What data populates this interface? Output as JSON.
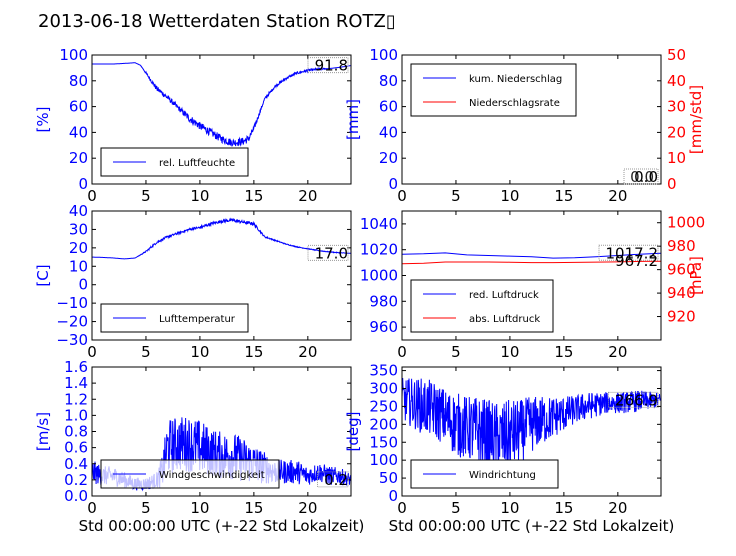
{
  "figure_title": "2013-06-18 Wetterdaten Station ROTZ▯",
  "colors": {
    "blue": "#0000ff",
    "red": "#ff0000",
    "axis": "#000000"
  },
  "chart_data": [
    {
      "id": "p1",
      "type": "line",
      "ylabel": "[%]",
      "ylim": [
        0,
        100
      ],
      "yticks": [
        "0",
        "20",
        "40",
        "60",
        "80",
        "100"
      ],
      "xlim": [
        0,
        24
      ],
      "xticks": [
        "0",
        "5",
        "10",
        "15",
        "20"
      ],
      "legend": "bottom-left",
      "last_value": "91.8",
      "series": [
        {
          "name": "rel. Luftfeuchte",
          "color": "#0000ff",
          "x": [
            0,
            1,
            2,
            3,
            4,
            4.5,
            5,
            6,
            7,
            8,
            9,
            10,
            11,
            12,
            13,
            14,
            14.5,
            15,
            16,
            17,
            18,
            19,
            20,
            21,
            22,
            23,
            24
          ],
          "y": [
            93,
            93,
            93,
            93.5,
            94,
            92,
            86,
            74,
            67,
            59,
            51,
            45,
            40,
            35,
            32,
            33,
            35,
            43,
            66,
            76,
            82,
            86,
            88,
            89,
            89.5,
            90.5,
            91.8
          ]
        }
      ],
      "noise": [
        0,
        0,
        0,
        0,
        0,
        0,
        1,
        2,
        2,
        2,
        3,
        3,
        3,
        3,
        3,
        3,
        3,
        2,
        1,
        1,
        1,
        1,
        1,
        1,
        0,
        0,
        0
      ]
    },
    {
      "id": "p2",
      "type": "line",
      "ylabel": "[mm]",
      "ylim": [
        0,
        100
      ],
      "yticks": [
        "0",
        "20",
        "40",
        "60",
        "80",
        "100"
      ],
      "ylabel2": "[mm/std]",
      "ylim2": [
        0,
        50
      ],
      "yticks2": [
        "0",
        "10",
        "20",
        "30",
        "40",
        "50"
      ],
      "xlim": [
        0,
        24
      ],
      "xticks": [
        "0",
        "5",
        "10",
        "15",
        "20"
      ],
      "legend": "top-left",
      "last_value": "0.0",
      "last_value2": "0.0",
      "series": [
        {
          "name": "kum. Niederschlag",
          "color": "#0000ff",
          "axis": "left",
          "x": [
            0,
            24
          ],
          "y": [
            0,
            0
          ]
        },
        {
          "name": "Niederschlagsrate",
          "color": "#ff0000",
          "axis": "right",
          "x": [
            0,
            24
          ],
          "y": [
            0,
            0
          ]
        }
      ]
    },
    {
      "id": "p3",
      "type": "line",
      "ylabel": "[C]",
      "ylim": [
        -30,
        40
      ],
      "yticks": [
        "−30",
        "−20",
        "−10",
        "0",
        "10",
        "20",
        "30",
        "40"
      ],
      "xlim": [
        0,
        24
      ],
      "xticks": [
        "0",
        "5",
        "10",
        "15",
        "20"
      ],
      "legend": "bottom-left",
      "last_value": "17.0",
      "series": [
        {
          "name": "Lufttemperatur",
          "color": "#0000ff",
          "x": [
            0,
            1,
            2,
            3,
            4,
            5,
            6,
            7,
            8,
            9,
            10,
            11,
            12,
            13,
            14,
            15,
            16,
            17,
            18,
            19,
            20,
            21,
            22,
            23,
            24
          ],
          "y": [
            15,
            14.8,
            14.5,
            14,
            14.5,
            18,
            23,
            26,
            28,
            30,
            31,
            33,
            34.5,
            35,
            34,
            33,
            26,
            24,
            22,
            20.5,
            19.5,
            18.5,
            17.8,
            17.3,
            17.0
          ]
        }
      ],
      "noise": [
        0,
        0,
        0,
        0,
        0,
        0.4,
        0.6,
        0.6,
        0.6,
        0.6,
        0.8,
        0.8,
        0.8,
        0.8,
        0.8,
        0.8,
        0.4,
        0.3,
        0.2,
        0.2,
        0.2,
        0.2,
        0.2,
        0.2,
        0
      ]
    },
    {
      "id": "p4",
      "type": "line",
      "ylim": [
        950,
        1050
      ],
      "yticks": [
        "960",
        "980",
        "1000",
        "1020",
        "1040"
      ],
      "ytick_values": [
        960,
        980,
        1000,
        1020,
        1040
      ],
      "ylim2": [
        900,
        1010
      ],
      "yticks2": [
        "920",
        "940",
        "960",
        "980",
        "1000"
      ],
      "ytick_values2": [
        920,
        940,
        960,
        980,
        1000
      ],
      "ylabel2": "[hPa]",
      "xlim": [
        0,
        24
      ],
      "xticks": [
        "0",
        "5",
        "10",
        "15",
        "20"
      ],
      "legend": "bottom-left",
      "last_value": "1017.2",
      "last_value2": "967.2",
      "series": [
        {
          "name": "red. Luftdruck",
          "color": "#0000ff",
          "axis": "left",
          "x": [
            0,
            2,
            4,
            6,
            8,
            10,
            12,
            14,
            16,
            18,
            20,
            22,
            24
          ],
          "y": [
            1016.5,
            1016.8,
            1017.5,
            1016,
            1015.5,
            1015,
            1014.5,
            1013.5,
            1013.8,
            1014.5,
            1015.5,
            1016.5,
            1017.2
          ]
        },
        {
          "name": "abs. Luftdruck",
          "color": "#ff0000",
          "axis": "right",
          "x": [
            0,
            2,
            4,
            6,
            8,
            10,
            12,
            14,
            16,
            18,
            20,
            22,
            24
          ],
          "y": [
            965,
            965.5,
            966.5,
            966.5,
            966.5,
            966.3,
            966,
            966,
            966.2,
            966.4,
            966.6,
            967,
            967.2
          ]
        }
      ]
    },
    {
      "id": "p5",
      "type": "line",
      "ylabel": "[m/s]",
      "ylim": [
        0,
        1.6
      ],
      "yticks": [
        "0.0",
        "0.2",
        "0.4",
        "0.6",
        "0.8",
        "1.0",
        "1.2",
        "1.4",
        "1.6"
      ],
      "xlim": [
        0,
        24
      ],
      "xticks": [
        "0",
        "5",
        "10",
        "15",
        "20"
      ],
      "xlabel": "Std 00:00:00 UTC (+-22 Std Lokalzeit)",
      "legend": "bottom-center",
      "last_value": "0.2",
      "series": [
        {
          "name": "Windgeschwindigkeit",
          "color": "#0000ff",
          "x": [
            0,
            1,
            2,
            3,
            4,
            5,
            6,
            6.5,
            7,
            8,
            9,
            10,
            11,
            12,
            13,
            14,
            15,
            16,
            17,
            18,
            19,
            20,
            21,
            22,
            23,
            24
          ],
          "y": [
            0.3,
            0.25,
            0.25,
            0.2,
            0.15,
            0.15,
            0.2,
            0.3,
            0.6,
            0.65,
            0.65,
            0.6,
            0.55,
            0.5,
            0.5,
            0.45,
            0.4,
            0.35,
            0.3,
            0.3,
            0.3,
            0.25,
            0.3,
            0.25,
            0.25,
            0.2
          ]
        }
      ],
      "noise": [
        0.15,
        0.12,
        0.12,
        0.1,
        0.08,
        0.08,
        0.1,
        0.2,
        0.35,
        0.35,
        0.35,
        0.35,
        0.3,
        0.3,
        0.3,
        0.28,
        0.25,
        0.2,
        0.15,
        0.15,
        0.15,
        0.12,
        0.12,
        0.12,
        0.1,
        0.08
      ]
    },
    {
      "id": "p6",
      "type": "line",
      "ylabel": "[deg]",
      "ylim": [
        0,
        360
      ],
      "yticks": [
        "0",
        "50",
        "100",
        "150",
        "200",
        "250",
        "300",
        "350"
      ],
      "ytick_values": [
        0,
        50,
        100,
        150,
        200,
        250,
        300,
        350
      ],
      "xlim": [
        0,
        24
      ],
      "xticks": [
        "0",
        "5",
        "10",
        "15",
        "20"
      ],
      "xlabel": "Std 00:00:00 UTC (+-22 Std Lokalzeit)",
      "legend": "bottom-left",
      "last_value": "266.9",
      "series": [
        {
          "name": "Windrichtung",
          "color": "#0000ff",
          "x": [
            0,
            1,
            2,
            3,
            4,
            5,
            6,
            7,
            8,
            9,
            10,
            11,
            12,
            13,
            14,
            15,
            16,
            17,
            18,
            19,
            20,
            21,
            22,
            23,
            24
          ],
          "y": [
            270,
            260,
            250,
            240,
            220,
            200,
            190,
            180,
            170,
            160,
            170,
            180,
            200,
            210,
            220,
            230,
            240,
            250,
            255,
            260,
            260,
            262,
            265,
            266,
            266.9
          ]
        }
      ],
      "noise": [
        60,
        70,
        80,
        80,
        80,
        90,
        90,
        100,
        100,
        100,
        100,
        90,
        80,
        70,
        60,
        50,
        40,
        40,
        35,
        30,
        30,
        30,
        30,
        25,
        20
      ]
    }
  ]
}
